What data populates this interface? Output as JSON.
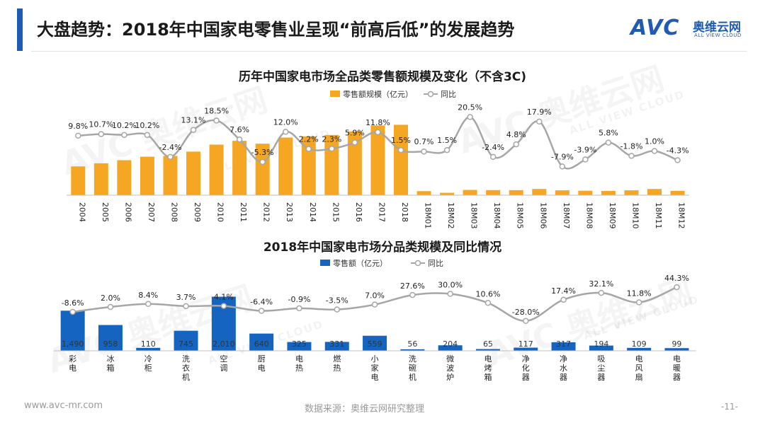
{
  "header": {
    "title": "大盘趋势：2018年中国家电零售业呈现“前高后低”的发展趋势",
    "logo_mark": "AVC",
    "logo_cn": "奥维云网",
    "logo_en": "ALL VIEW CLOUD"
  },
  "watermark": {
    "text": "AVC 奥维云网",
    "sub": "ALL VIEW CLOUD"
  },
  "footer": {
    "website": "www.avc-mr.com",
    "source": "数据来源：奥维云网研究整理",
    "page": "-11-"
  },
  "colors": {
    "accent": "#1f5bb5",
    "bar_top": "#f5a623",
    "bar_bottom": "#1565c0",
    "line": "#a6a6a6"
  },
  "chart_data": [
    {
      "type": "bar",
      "title": "历年中国家电市场全品类零售额规模及变化（不含3C)",
      "legend": {
        "bar": "零售额规模（亿元）",
        "line": "同比",
        "position": "top"
      },
      "categories": [
        "2004",
        "2005",
        "2006",
        "2007",
        "2008",
        "2009",
        "2010",
        "2011",
        "2012",
        "2013",
        "2014",
        "2015",
        "2016",
        "2017",
        "2018",
        "18M01",
        "18M02",
        "18M03",
        "18M04",
        "18M05",
        "18M06",
        "18M07",
        "18M08",
        "18M09",
        "18M10",
        "18M11",
        "18M12"
      ],
      "series": [
        {
          "name": "零售额规模（亿元）",
          "type": "bar",
          "values": [
            3700,
            4100,
            4500,
            4950,
            5050,
            5600,
            6500,
            6990,
            6620,
            7410,
            7570,
            7740,
            8200,
            8960,
            9050,
            520,
            310,
            680,
            660,
            650,
            800,
            630,
            570,
            550,
            630,
            800,
            560
          ]
        },
        {
          "name": "同比",
          "type": "line",
          "values": [
            9.8,
            10.7,
            10.2,
            10.2,
            -2.4,
            13.1,
            18.5,
            7.6,
            -5.3,
            12.0,
            2.2,
            2.3,
            5.9,
            11.8,
            1.5,
            0.7,
            1.5,
            20.5,
            -2.4,
            4.8,
            17.9,
            -7.9,
            -3.9,
            5.8,
            -1.8,
            1.0,
            -4.3
          ]
        }
      ],
      "line_labels": [
        "9.8%",
        "10.7%",
        "10.2%",
        "10.2%",
        "-2.4%",
        "13.1%",
        "18.5%",
        "7.6%",
        "-5.3%",
        "12.0%",
        "2.2%",
        "2.3%",
        "5.9%",
        "11.8%",
        "1.5%",
        "0.7%",
        "1.5%",
        "20.5%",
        "-2.4%",
        "4.8%",
        "17.9%",
        "-7.9%",
        "-3.9%",
        "5.8%",
        "-1.8%",
        "1.0%",
        "-4.3%"
      ],
      "bar_ylim": [
        0,
        10000
      ],
      "line_ylim": [
        -22,
        26
      ]
    },
    {
      "type": "bar",
      "title": "2018年中国家电市场分品类规模及同比情况",
      "legend": {
        "bar": "零售额（亿元）",
        "line": "同比",
        "position": "top"
      },
      "categories": [
        "彩电",
        "冰箱",
        "冷柜",
        "洗衣机",
        "空调",
        "厨电",
        "电热",
        "燃热",
        "小家电",
        "洗碗机",
        "微波炉",
        "电烤箱",
        "净化器",
        "净水器",
        "吸尘器",
        "电风扇",
        "电暖器"
      ],
      "series": [
        {
          "name": "零售额（亿元）",
          "type": "bar",
          "values": [
            1490,
            958,
            110,
            745,
            2010,
            640,
            325,
            331,
            559,
            56,
            204,
            65,
            117,
            317,
            194,
            109,
            99
          ]
        },
        {
          "name": "同比",
          "type": "line",
          "values": [
            -8.6,
            2.0,
            8.4,
            3.7,
            4.1,
            -6.4,
            -0.9,
            -3.5,
            7.0,
            27.6,
            30.0,
            10.6,
            -28.0,
            17.4,
            32.1,
            11.8,
            44.3
          ]
        }
      ],
      "bar_labels": [
        "1,490",
        "958",
        "110",
        "745",
        "2,010",
        "640",
        "325",
        "331",
        "559",
        "56",
        "204",
        "65",
        "117",
        "317",
        "194",
        "109",
        "99"
      ],
      "line_labels": [
        "-8.6%",
        "2.0%",
        "8.4%",
        "3.7%",
        "4.1%",
        "-6.4%",
        "-0.9%",
        "-3.5%",
        "7.0%",
        "27.6%",
        "30.0%",
        "10.6%",
        "-28.0%",
        "17.4%",
        "32.1%",
        "11.8%",
        "44.3%"
      ],
      "bar_ylim": [
        0,
        2050
      ],
      "line_ylim": [
        -45,
        55
      ]
    }
  ]
}
